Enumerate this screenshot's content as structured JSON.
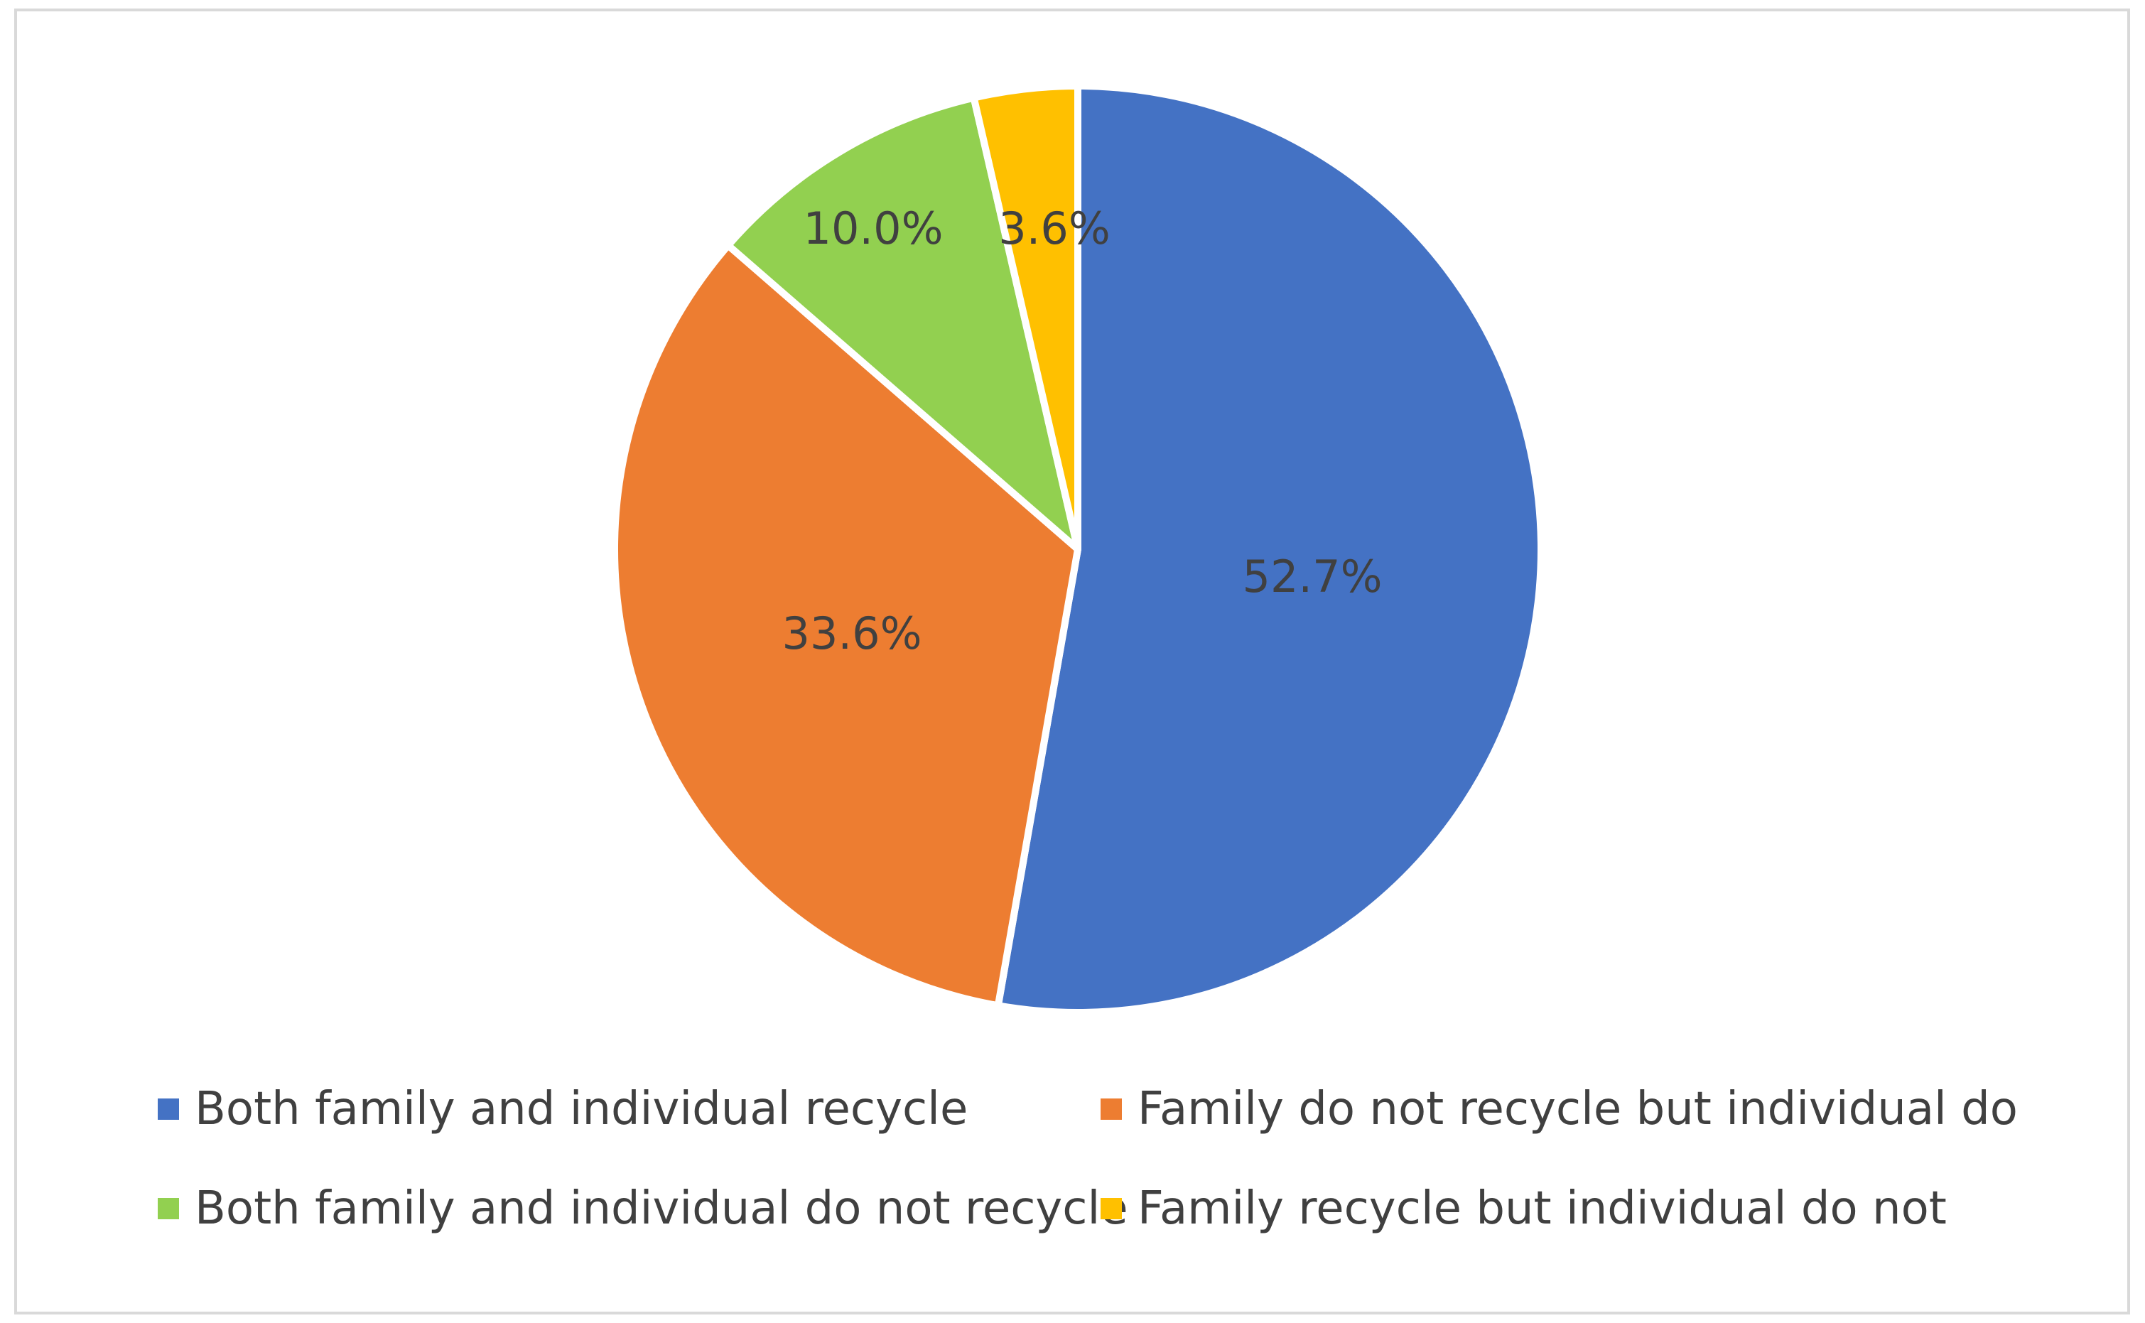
{
  "chart_data": {
    "type": "pie",
    "title": "",
    "start_angle_deg": 0,
    "direction": "clockwise",
    "legend_position": "bottom",
    "slices": [
      {
        "label": "Both family and individual recycle",
        "value": 52.7,
        "display": "52.7%",
        "color": "#4472C4"
      },
      {
        "label": "Family do not recycle but individual do",
        "value": 33.6,
        "display": "33.6%",
        "color": "#ED7D31"
      },
      {
        "label": "Both family and individual do not recycle",
        "value": 10.0,
        "display": "10.0%",
        "color": "#92D050"
      },
      {
        "label": "Family recycle but individual do not",
        "value": 3.6,
        "display": "3.6%",
        "color": "#FFC000"
      }
    ]
  }
}
